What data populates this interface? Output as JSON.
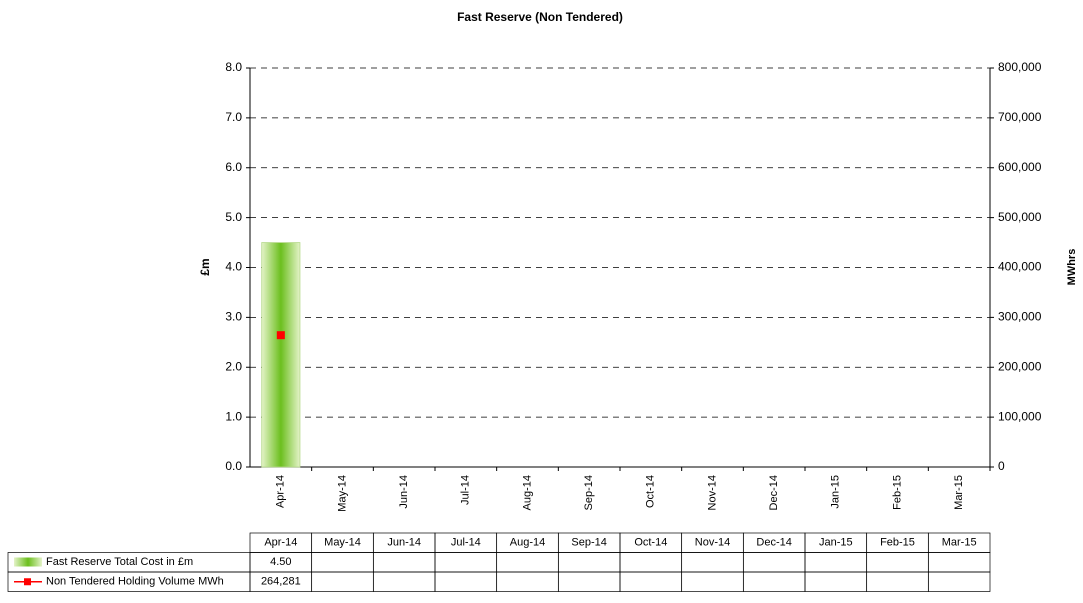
{
  "chart_data": {
    "type": "bar+line",
    "title": "Fast Reserve (Non Tendered)",
    "y_label": "£m",
    "y2_label": "MWhrs",
    "categories": [
      "Apr-14",
      "May-14",
      "Jun-14",
      "Jul-14",
      "Aug-14",
      "Sep-14",
      "Oct-14",
      "Nov-14",
      "Dec-14",
      "Jan-15",
      "Feb-15",
      "Mar-15"
    ],
    "series": [
      {
        "name": "Fast Reserve Total Cost in £m",
        "type": "bar",
        "color": "#6cbf1e",
        "values": [
          4.5,
          null,
          null,
          null,
          null,
          null,
          null,
          null,
          null,
          null,
          null,
          null
        ],
        "value_labels": [
          "4.50",
          null,
          null,
          null,
          null,
          null,
          null,
          null,
          null,
          null,
          null,
          null
        ]
      },
      {
        "name": "Non Tendered Holding Volume MWh",
        "type": "line",
        "axis": "y2",
        "color": "#ff0000",
        "values": [
          264281,
          null,
          null,
          null,
          null,
          null,
          null,
          null,
          null,
          null,
          null,
          null
        ],
        "value_labels": [
          "264,281",
          null,
          null,
          null,
          null,
          null,
          null,
          null,
          null,
          null,
          null,
          null
        ]
      }
    ],
    "ylim": [
      0,
      8
    ],
    "yticks": [
      {
        "value": 0,
        "label": "0.0"
      },
      {
        "value": 1,
        "label": "1.0"
      },
      {
        "value": 2,
        "label": "2.0"
      },
      {
        "value": 3,
        "label": "3.0"
      },
      {
        "value": 4,
        "label": "4.0"
      },
      {
        "value": 5,
        "label": "5.0"
      },
      {
        "value": 6,
        "label": "6.0"
      },
      {
        "value": 7,
        "label": "7.0"
      },
      {
        "value": 8,
        "label": "8.0"
      }
    ],
    "y2lim": [
      0,
      800000
    ],
    "y2ticks": [
      0,
      {
        "value": 100000,
        "label": "100,000"
      },
      {
        "value": 200000,
        "label": "200,000"
      },
      {
        "value": 300000,
        "label": "300,000"
      },
      {
        "value": 400000,
        "label": "400,000"
      },
      {
        "value": 500000,
        "label": "500,000"
      },
      {
        "value": 600000,
        "label": "600,000"
      },
      {
        "value": 700000,
        "label": "700,000"
      },
      {
        "value": 800000,
        "label": "800,000"
      }
    ],
    "grid": true
  }
}
